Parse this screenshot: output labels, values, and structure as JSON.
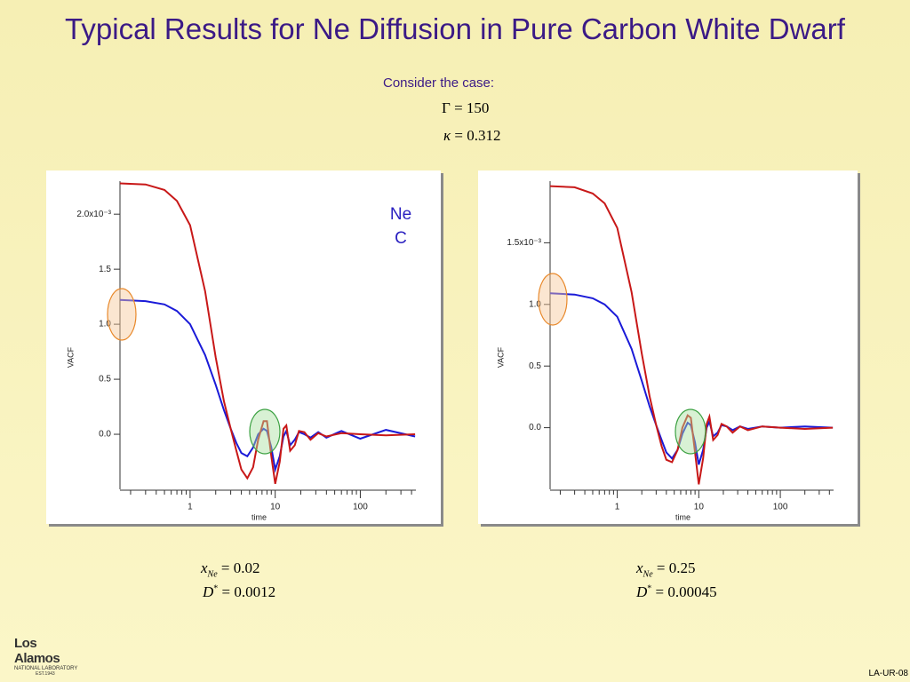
{
  "title": "Typical Results for Ne Diffusion in Pure Carbon White Dwarf",
  "intro": "Consider the case:",
  "params": [
    {
      "symbol": "Γ",
      "rest": "= 150"
    },
    {
      "symbol": "κ",
      "rest": "= 0.312"
    }
  ],
  "cases": [
    {
      "x": {
        "base": "x",
        "sub": "Ne",
        "rest": "= 0.02"
      },
      "d": {
        "base": "D",
        "sup": "*",
        "rest": "= 0.0012"
      }
    },
    {
      "x": {
        "base": "x",
        "sub": "Ne",
        "rest": "= 0.25"
      },
      "d": {
        "base": "D",
        "sup": "*",
        "rest": "= 0.00045"
      }
    }
  ],
  "logo": {
    "name": "Los Alamos",
    "sub": "NATIONAL LABORATORY",
    "est": "EST.1943"
  },
  "footer": "LA-UR-08",
  "chart_data": [
    {
      "type": "line",
      "xlabel": "time",
      "ylabel": "VACF",
      "xlog": true,
      "xlim": [
        0.15,
        450
      ],
      "xticks": [
        1,
        10,
        100
      ],
      "ylim": [
        -0.5,
        2.3
      ],
      "yticks": [
        {
          "value": 0,
          "label": "0.0"
        },
        {
          "value": 0.5,
          "label": "0.5"
        },
        {
          "value": 1,
          "label": "1.0"
        },
        {
          "value": 1.5,
          "label": "1.5"
        },
        {
          "value": 2,
          "label": "2.0x10⁻³"
        }
      ],
      "x": [
        0.15,
        0.3,
        0.5,
        0.7,
        1.0,
        1.5,
        2.0,
        2.5,
        3.0,
        3.5,
        4.0,
        4.7,
        5.5,
        6.3,
        7.3,
        8.0,
        9.0,
        10,
        11.3,
        12.5,
        13.5,
        15,
        17,
        19,
        22,
        26,
        32,
        40,
        60,
        100,
        200,
        440
      ],
      "series": [
        {
          "name": "Ne",
          "color": "#1a1ad8",
          "values": [
            1.22,
            1.21,
            1.18,
            1.12,
            1.0,
            0.72,
            0.45,
            0.22,
            0.05,
            -0.08,
            -0.17,
            -0.2,
            -0.12,
            0.0,
            0.05,
            0.03,
            -0.12,
            -0.32,
            -0.2,
            -0.02,
            0.03,
            -0.1,
            -0.05,
            0.02,
            0.0,
            -0.03,
            0.02,
            -0.03,
            0.03,
            -0.04,
            0.04,
            -0.02
          ]
        },
        {
          "name": "C",
          "color": "#c81818",
          "values": [
            2.28,
            2.27,
            2.22,
            2.12,
            1.9,
            1.3,
            0.7,
            0.3,
            0.05,
            -0.15,
            -0.32,
            -0.4,
            -0.3,
            -0.05,
            0.12,
            0.12,
            -0.2,
            -0.45,
            -0.25,
            0.05,
            0.08,
            -0.15,
            -0.1,
            0.03,
            0.02,
            -0.05,
            0.01,
            -0.02,
            0.01,
            0.0,
            -0.01,
            0.0
          ]
        }
      ]
    },
    {
      "type": "line",
      "xlabel": "time",
      "ylabel": "VACF",
      "xlog": true,
      "xlim": [
        0.15,
        450
      ],
      "xticks": [
        1,
        10,
        100
      ],
      "ylim": [
        -0.5,
        2.0
      ],
      "yticks": [
        {
          "value": 0,
          "label": "0.0"
        },
        {
          "value": 0.5,
          "label": "0.5"
        },
        {
          "value": 1,
          "label": "1.0"
        },
        {
          "value": 1.5,
          "label": "1.5x10⁻³"
        }
      ],
      "x": [
        0.15,
        0.3,
        0.5,
        0.7,
        1.0,
        1.5,
        2.0,
        2.5,
        3.0,
        3.5,
        4.0,
        4.7,
        5.5,
        6.3,
        7.3,
        8.0,
        9.0,
        10,
        11.3,
        12.5,
        13.5,
        15,
        17,
        19,
        22,
        26,
        32,
        40,
        60,
        100,
        200,
        440
      ],
      "series": [
        {
          "color": "#1a1ad8",
          "values": [
            1.09,
            1.08,
            1.05,
            1.0,
            0.9,
            0.64,
            0.38,
            0.17,
            0.02,
            -0.1,
            -0.2,
            -0.25,
            -0.18,
            -0.05,
            0.04,
            0.02,
            -0.12,
            -0.3,
            -0.18,
            0.0,
            0.05,
            -0.07,
            -0.04,
            0.02,
            0.01,
            -0.02,
            0.01,
            -0.01,
            0.01,
            0.0,
            0.01,
            0.0
          ]
        },
        {
          "color": "#c81818",
          "values": [
            1.96,
            1.95,
            1.9,
            1.82,
            1.62,
            1.1,
            0.6,
            0.25,
            0.02,
            -0.15,
            -0.26,
            -0.28,
            -0.18,
            0.0,
            0.1,
            0.08,
            -0.2,
            -0.46,
            -0.25,
            0.03,
            0.09,
            -0.1,
            -0.06,
            0.03,
            0.01,
            -0.04,
            0.01,
            -0.02,
            0.01,
            0.0,
            -0.01,
            0.0
          ]
        }
      ]
    }
  ]
}
